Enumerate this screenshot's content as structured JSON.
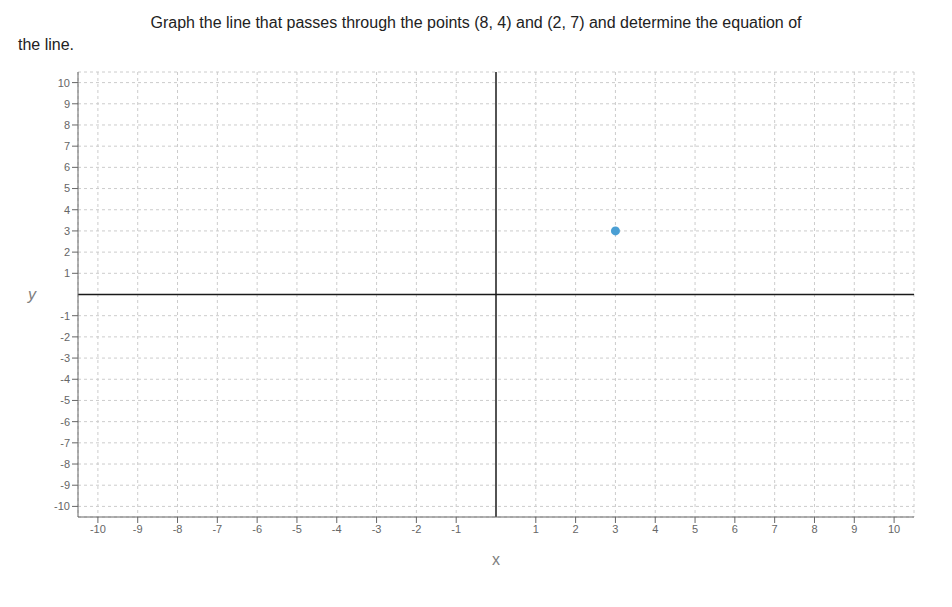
{
  "chart_data": {
    "type": "scatter",
    "title": "Graph the line that passes through the points (8, 4) and (2, 7) and determine the equation of\nthe line.",
    "xlabel": "x",
    "ylabel": "y",
    "x": [
      3
    ],
    "values": [
      3
    ],
    "color": "#4a9fd4",
    "xlim": [
      -10.5,
      10.5
    ],
    "ylim": [
      -10.5,
      10.5
    ],
    "xticks": [
      -10,
      -9,
      -8,
      -7,
      -6,
      -5,
      -4,
      -3,
      -2,
      -1,
      1,
      2,
      3,
      4,
      5,
      6,
      7,
      8,
      9,
      10
    ],
    "yticks": [
      -10,
      -9,
      -8,
      -7,
      -6,
      -5,
      -4,
      -3,
      -2,
      -1,
      1,
      2,
      3,
      4,
      5,
      6,
      7,
      8,
      9,
      10
    ],
    "grid": true
  }
}
